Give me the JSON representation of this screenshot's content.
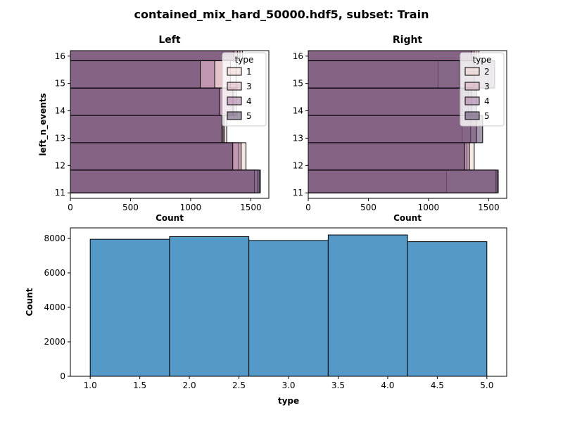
{
  "figure_title": "contained_mix_hard_50000.hdf5, subset: Train",
  "chart_data": [
    {
      "type": "bar",
      "orientation": "horizontal",
      "title": "Left",
      "xlabel": "Count",
      "ylabel": "left_n_events",
      "xlim": [
        0,
        1650
      ],
      "ylim": [
        10.8,
        16.2
      ],
      "xticks": [
        0,
        500,
        1000,
        1500
      ],
      "yticks": [
        11,
        12,
        13,
        14,
        15,
        16
      ],
      "bins": [
        [
          11,
          11.8333
        ],
        [
          11.8333,
          12.8333
        ],
        [
          12.8333,
          13.8333
        ],
        [
          13.8333,
          14.8333
        ],
        [
          14.8333,
          15.8333
        ],
        [
          15.8333,
          16.8333
        ]
      ],
      "legend": {
        "title": "type",
        "position": "top-right",
        "labels": [
          "1",
          "3",
          "4",
          "5"
        ]
      },
      "series": [
        {
          "name": "1",
          "color": "#edd1cb",
          "values": [
            1570,
            1460,
            1300,
            1380,
            1380,
            1430
          ]
        },
        {
          "name": "3",
          "color": "#d29fb0",
          "values": [
            1530,
            1400,
            1280,
            1360,
            1330,
            1410
          ]
        },
        {
          "name": "4",
          "color": "#9e6a98",
          "values": [
            1560,
            1420,
            1270,
            1350,
            1200,
            1390
          ]
        },
        {
          "name": "5",
          "color": "#483058",
          "values": [
            1580,
            1350,
            1260,
            1240,
            1080,
            1360
          ]
        }
      ]
    },
    {
      "type": "bar",
      "orientation": "horizontal",
      "title": "Right",
      "xlabel": "Count",
      "ylabel": "",
      "xlim": [
        0,
        1650
      ],
      "ylim": [
        10.8,
        16.2
      ],
      "xticks": [
        0,
        500,
        1000,
        1500
      ],
      "yticks": [
        11,
        12,
        13,
        14,
        15,
        16
      ],
      "bins": [
        [
          11,
          11.8333
        ],
        [
          11.8333,
          12.8333
        ],
        [
          12.8333,
          13.8333
        ],
        [
          13.8333,
          14.8333
        ],
        [
          14.8333,
          15.8333
        ],
        [
          15.8333,
          16.8333
        ]
      ],
      "legend": {
        "title": "type",
        "position": "top-right",
        "labels": [
          "2",
          "3",
          "4",
          "5"
        ]
      },
      "series": [
        {
          "name": "2",
          "color": "#edd1cb",
          "values": [
            1150,
            1380,
            1280,
            1330,
            1080,
            1400
          ]
        },
        {
          "name": "3",
          "color": "#d29fb0",
          "values": [
            1560,
            1320,
            1350,
            1280,
            1380,
            1420
          ]
        },
        {
          "name": "4",
          "color": "#9e6a98",
          "values": [
            1580,
            1340,
            1400,
            1360,
            1260,
            1380
          ]
        },
        {
          "name": "5",
          "color": "#483058",
          "values": [
            1570,
            1300,
            1450,
            1400,
            1550,
            1360
          ]
        }
      ]
    },
    {
      "type": "bar",
      "title": "",
      "xlabel": "type",
      "ylabel": "Count",
      "xlim": [
        0.8,
        5.2
      ],
      "ylim": [
        0,
        8610
      ],
      "xticks": [
        1.0,
        1.5,
        2.0,
        2.5,
        3.0,
        3.5,
        4.0,
        4.5,
        5.0
      ],
      "yticks": [
        0,
        2000,
        4000,
        6000,
        8000
      ],
      "bins": [
        [
          1.0,
          1.8
        ],
        [
          1.8,
          2.6
        ],
        [
          2.6,
          3.4
        ],
        [
          3.4,
          4.2
        ],
        [
          4.2,
          5.0
        ]
      ],
      "values": [
        7950,
        8100,
        7880,
        8200,
        7810
      ],
      "color": "#5499c7"
    }
  ]
}
